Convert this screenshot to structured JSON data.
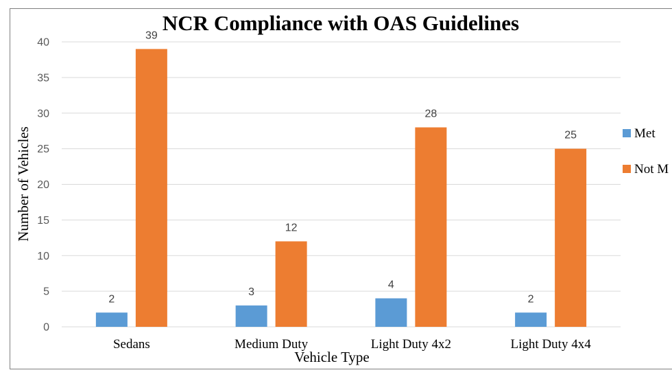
{
  "chart_data": {
    "type": "bar",
    "title": "NCR Compliance with OAS Guidelines",
    "xlabel": "Vehicle Type",
    "ylabel": "Number of Vehicles",
    "categories": [
      "Sedans",
      "Medium Duty",
      "Light Duty 4x2",
      "Light Duty 4x4"
    ],
    "series": [
      {
        "name": "Met",
        "values": [
          2,
          3,
          4,
          2
        ],
        "color": "#5b9bd5"
      },
      {
        "name": "Not M",
        "values": [
          39,
          12,
          28,
          25
        ],
        "color": "#ed7d31"
      }
    ],
    "ylim": [
      0,
      40
    ],
    "yticks": [
      0,
      5,
      10,
      15,
      20,
      25,
      30,
      35,
      40
    ],
    "grid": true,
    "legend": "right",
    "data_labels": true
  },
  "colors": {
    "grid": "#d9d9d9",
    "frame": "#7f7f7f"
  }
}
